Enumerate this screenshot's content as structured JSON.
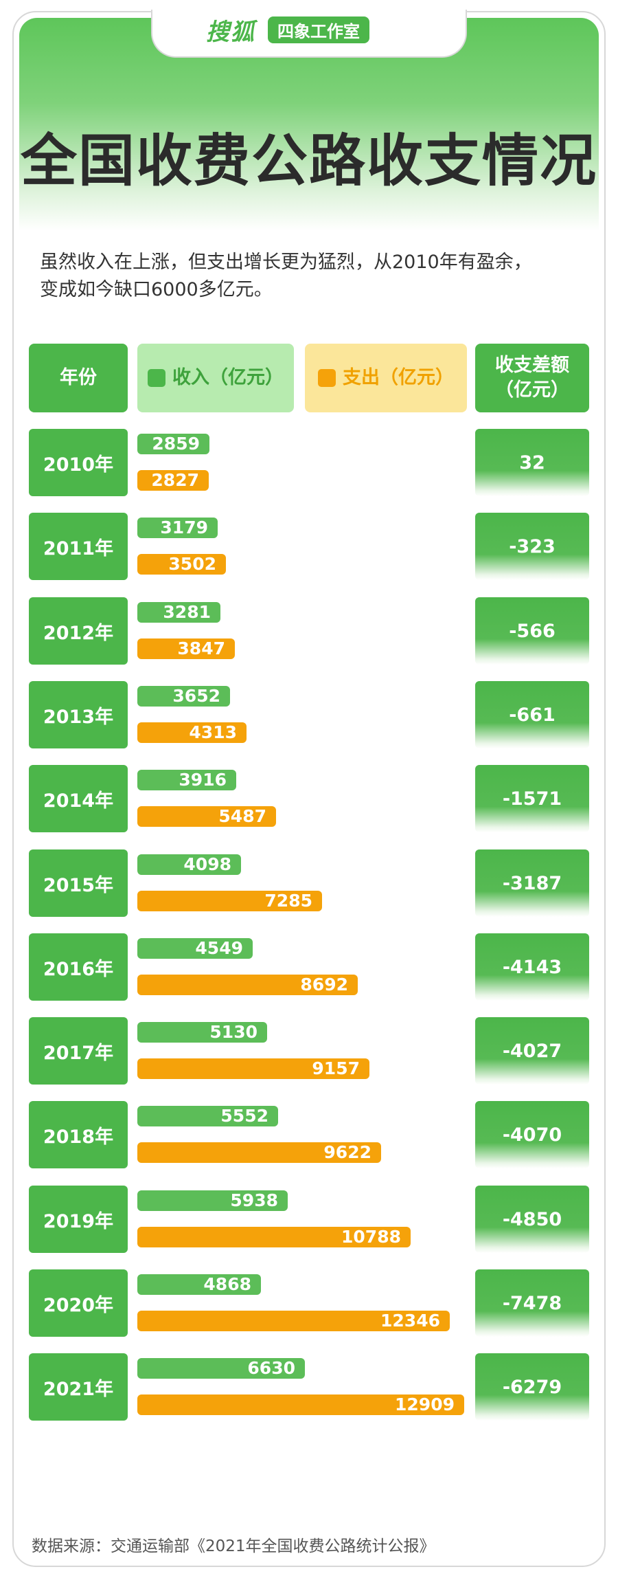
{
  "brand": {
    "logo": "搜狐",
    "tag": "四象工作室"
  },
  "title": "全国收费公路收支情况",
  "subtitle_line1": "虽然收入在上涨，但支出增长更为猛烈，从2010年有盈余，",
  "subtitle_line2": "变成如今缺口6000多亿元。",
  "headers": {
    "year": "年份",
    "income": "收入（亿元）",
    "expense": "支出（亿元）",
    "diff_line1": "收支差额",
    "diff_line2": "（亿元）"
  },
  "colors": {
    "green": "#4cb64a",
    "orange": "#f5a20a",
    "income_header_bg": "#b7ebaf",
    "expense_header_bg": "#fbe69a"
  },
  "source": "数据来源：交通运输部《2021年全国收费公路统计公报》",
  "chart_data": {
    "type": "bar",
    "categories": [
      "2010年",
      "2011年",
      "2012年",
      "2013年",
      "2014年",
      "2015年",
      "2016年",
      "2017年",
      "2018年",
      "2019年",
      "2020年",
      "2021年"
    ],
    "series": [
      {
        "name": "收入（亿元）",
        "values": [
          2859,
          3179,
          3281,
          3652,
          3916,
          4098,
          4549,
          5130,
          5552,
          5938,
          4868,
          6630
        ]
      },
      {
        "name": "支出（亿元）",
        "values": [
          2827,
          3502,
          3847,
          4313,
          5487,
          7285,
          8692,
          9157,
          9622,
          10788,
          12346,
          12909
        ]
      }
    ],
    "diff": [
      "32",
      "-323",
      "-566",
      "-661",
      "-1571",
      "-3187",
      "-4143",
      "-4027",
      "-4070",
      "-4850",
      "-7478",
      "-6279"
    ],
    "orientation": "horizontal",
    "title": "全国收费公路收支情况"
  }
}
